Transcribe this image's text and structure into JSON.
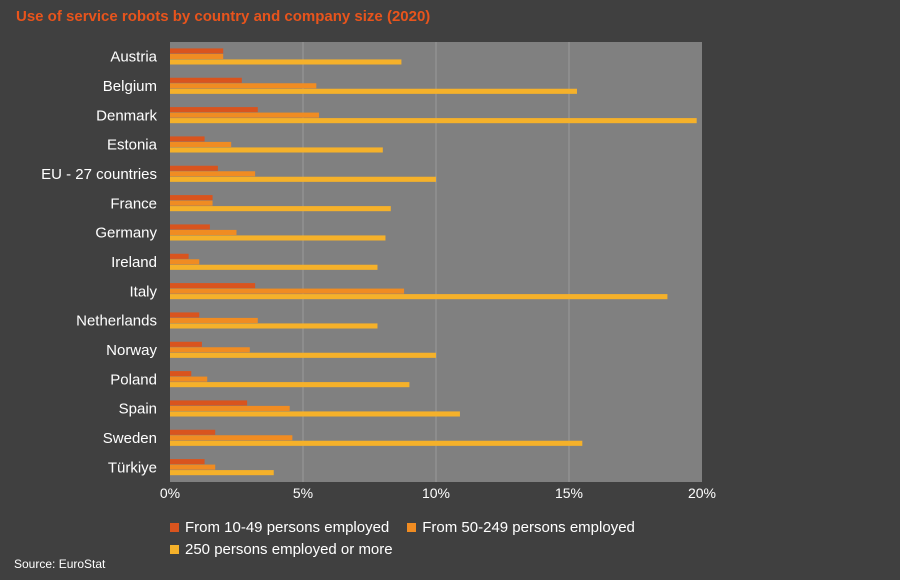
{
  "chart_data": {
    "type": "bar",
    "orientation": "horizontal",
    "title": "Use of service robots by country and company size (2020)",
    "categories": [
      "Austria",
      "Belgium",
      "Denmark",
      "Estonia",
      "EU - 27 countries",
      "France",
      "Germany",
      "Ireland",
      "Italy",
      "Netherlands",
      "Norway",
      "Poland",
      "Spain",
      "Sweden",
      "Türkiye"
    ],
    "series": [
      {
        "name": "From 10-49 persons employed",
        "color": "#d9541e",
        "values": [
          2.0,
          2.7,
          3.3,
          1.3,
          1.8,
          1.6,
          1.5,
          0.7,
          3.2,
          1.1,
          1.2,
          0.8,
          2.9,
          1.7,
          1.3
        ]
      },
      {
        "name": "From 50-249 persons employed",
        "color": "#f08c22",
        "values": [
          2.0,
          5.5,
          5.6,
          2.3,
          3.2,
          1.6,
          2.5,
          1.1,
          8.8,
          3.3,
          3.0,
          1.4,
          4.5,
          4.6,
          1.7
        ]
      },
      {
        "name": "250 persons employed or more",
        "color": "#f5b12a",
        "values": [
          8.7,
          15.3,
          19.8,
          8.0,
          10.0,
          8.3,
          8.1,
          7.8,
          18.7,
          7.8,
          10.0,
          9.0,
          10.9,
          15.5,
          3.9
        ]
      }
    ],
    "xlim": [
      0,
      20
    ],
    "xticks": [
      "0%",
      "5%",
      "10%",
      "15%",
      "20%"
    ],
    "grid": "vertical",
    "legend_position": "bottom"
  },
  "source": "Source: EuroStat",
  "colors": {
    "background": "#404040",
    "plot_area": "#808080",
    "title": "#e8541c",
    "text": "#ffffff"
  }
}
